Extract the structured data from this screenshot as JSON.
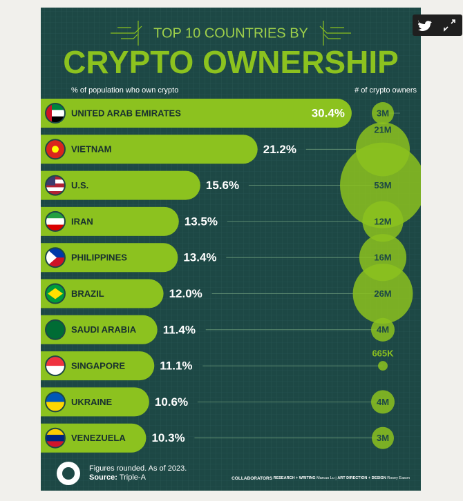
{
  "chart_data": {
    "type": "bar",
    "orientation": "horizontal",
    "title_top": "TOP 10 COUNTRIES BY",
    "title": "CRYPTO OWNERSHIP",
    "x_label": "% of population who own crypto",
    "size_label": "# of crypto owners",
    "categories": [
      "UNITED ARAB EMIRATES",
      "VIETNAM",
      "U.S.",
      "IRAN",
      "PHILIPPINES",
      "BRAZIL",
      "SAUDI ARABIA",
      "SINGAPORE",
      "UKRAINE",
      "VENEZUELA"
    ],
    "values": [
      30.4,
      21.2,
      15.6,
      13.5,
      13.4,
      12.0,
      11.4,
      11.1,
      10.6,
      10.3
    ],
    "value_labels": [
      "30.4%",
      "21.2%",
      "15.6%",
      "13.5%",
      "13.4%",
      "12.0%",
      "11.4%",
      "11.1%",
      "10.6%",
      "10.3%"
    ],
    "owners": [
      3000000,
      21000000,
      53000000,
      12000000,
      16000000,
      26000000,
      4000000,
      665000,
      4000000,
      3000000
    ],
    "owner_labels": [
      "3M",
      "21M",
      "53M",
      "12M",
      "16M",
      "26M",
      "4M",
      "665K",
      "4M",
      "3M"
    ],
    "color": "#8cc21f",
    "note": "Figures rounded. As of 2023.",
    "source_label": "Source:",
    "source": "Triple-A",
    "credits": {
      "heading": "COLLABORATORS",
      "research_role": "RESEARCH + WRITING",
      "research_name": "Marcus Lu",
      "design_role": "ART DIRECTION + DESIGN",
      "design_name": "Rosey Eason"
    }
  }
}
